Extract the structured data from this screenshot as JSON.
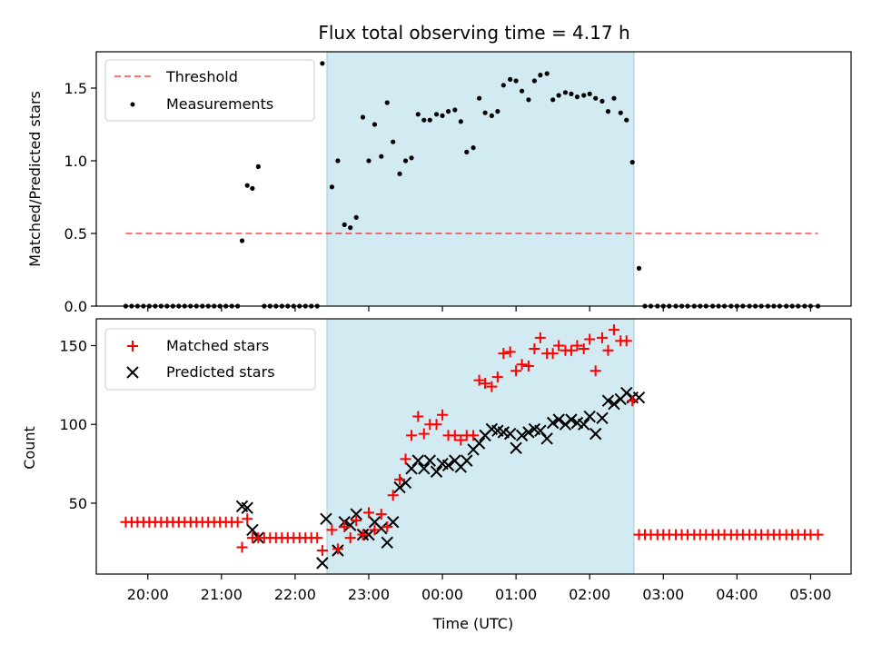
{
  "title": "Flux total observing time = 4.17 h",
  "colors": {
    "threshold": "#ff0000",
    "measurements": "#000000",
    "matched": "#ff0000",
    "predicted": "#000000",
    "highlight": "#add8e6"
  },
  "chart_data": [
    {
      "type": "scatter",
      "ylabel": "Matched/Predicted stars",
      "ylim": [
        0,
        1.75
      ],
      "yticks": [
        0.0,
        0.5,
        1.0,
        1.5
      ],
      "ytick_labels": [
        "0.0",
        "0.5",
        "1.0",
        "1.5"
      ],
      "legend_position": "top-left",
      "legend": [
        "Threshold",
        "Measurements"
      ],
      "threshold": {
        "value": 0.5,
        "x_start": 19.7,
        "x_end": 5.1
      },
      "highlight_span": [
        22.433,
        2.6
      ],
      "measurements": {
        "x": [
          19.7,
          19.78,
          19.86,
          19.94,
          20.02,
          20.1,
          20.18,
          20.26,
          20.34,
          20.42,
          20.5,
          20.58,
          20.66,
          20.74,
          20.82,
          20.9,
          20.98,
          21.06,
          21.14,
          21.22,
          21.28,
          21.35,
          21.42,
          21.5,
          21.58,
          21.66,
          21.74,
          21.82,
          21.9,
          21.98,
          22.06,
          22.14,
          22.22,
          22.3,
          22.37,
          22.5,
          22.58,
          22.67,
          22.75,
          22.83,
          22.92,
          23.0,
          23.08,
          23.17,
          23.25,
          23.33,
          23.42,
          23.5,
          23.58,
          23.67,
          23.75,
          23.83,
          23.92,
          24.0,
          24.08,
          24.17,
          24.25,
          24.33,
          24.42,
          24.5,
          24.58,
          24.67,
          24.75,
          24.83,
          24.92,
          25.0,
          25.08,
          25.17,
          25.25,
          25.33,
          25.42,
          25.5,
          25.58,
          25.67,
          25.75,
          25.83,
          25.92,
          26.0,
          26.08,
          26.17,
          26.25,
          26.33,
          26.42,
          26.5,
          26.58,
          26.67,
          26.75,
          26.83,
          26.92,
          27.0,
          27.08,
          27.17,
          27.25,
          27.33,
          27.42,
          27.5,
          27.58,
          27.67,
          27.75,
          27.83,
          27.92,
          28.0,
          28.08,
          28.17,
          28.25,
          28.33,
          28.42,
          28.5,
          28.58,
          28.67,
          28.75,
          28.83,
          28.92,
          29.0,
          29.1
        ],
        "y": [
          0,
          0,
          0,
          0,
          0,
          0,
          0,
          0,
          0,
          0,
          0,
          0,
          0,
          0,
          0,
          0,
          0,
          0,
          0,
          0,
          0.45,
          0.83,
          0.81,
          0.96,
          0,
          0,
          0,
          0,
          0,
          0,
          0,
          0,
          0,
          0,
          1.67,
          0.82,
          1.0,
          0.56,
          0.54,
          0.61,
          1.3,
          1.0,
          1.25,
          1.03,
          1.4,
          1.13,
          0.91,
          1.0,
          1.02,
          1.32,
          1.28,
          1.28,
          1.32,
          1.31,
          1.34,
          1.35,
          1.27,
          1.06,
          1.09,
          1.43,
          1.33,
          1.31,
          1.34,
          1.52,
          1.56,
          1.55,
          1.48,
          1.42,
          1.55,
          1.59,
          1.6,
          1.42,
          1.45,
          1.47,
          1.46,
          1.44,
          1.45,
          1.46,
          1.43,
          1.41,
          1.34,
          1.43,
          1.33,
          1.28,
          0.99,
          0.26,
          0,
          0,
          0,
          0,
          0,
          0,
          0,
          0,
          0,
          0,
          0,
          0,
          0,
          0,
          0,
          0,
          0,
          0,
          0,
          0,
          0,
          0,
          0,
          0,
          0,
          0,
          0,
          0,
          0
        ]
      }
    },
    {
      "type": "scatter",
      "xlabel": "Time (UTC)",
      "ylabel": "Count",
      "ylim": [
        5,
        167
      ],
      "yticks": [
        50,
        100,
        150
      ],
      "ytick_labels": [
        "50",
        "100",
        "150"
      ],
      "xtick_positions": [
        20,
        21,
        22,
        23,
        24,
        25,
        26,
        27,
        28,
        29
      ],
      "xtick_labels": [
        "20:00",
        "21:00",
        "22:00",
        "23:00",
        "00:00",
        "01:00",
        "02:00",
        "03:00",
        "04:00",
        "05:00"
      ],
      "legend_position": "top-left",
      "legend": [
        "Matched stars",
        "Predicted stars"
      ],
      "highlight_span": [
        22.433,
        2.6
      ],
      "matched": {
        "x": [
          19.7,
          19.78,
          19.86,
          19.94,
          20.02,
          20.1,
          20.18,
          20.26,
          20.34,
          20.42,
          20.5,
          20.58,
          20.66,
          20.74,
          20.82,
          20.9,
          20.98,
          21.06,
          21.14,
          21.22,
          21.28,
          21.35,
          21.42,
          21.5,
          21.58,
          21.66,
          21.74,
          21.82,
          21.9,
          21.98,
          22.06,
          22.14,
          22.22,
          22.3,
          22.37,
          22.5,
          22.58,
          22.67,
          22.75,
          22.83,
          22.92,
          23.0,
          23.08,
          23.17,
          23.25,
          23.33,
          23.42,
          23.5,
          23.58,
          23.67,
          23.75,
          23.83,
          23.92,
          24.0,
          24.08,
          24.17,
          24.25,
          24.33,
          24.42,
          24.5,
          24.58,
          24.67,
          24.75,
          24.83,
          24.92,
          25.0,
          25.08,
          25.17,
          25.25,
          25.33,
          25.42,
          25.5,
          25.58,
          25.67,
          25.75,
          25.83,
          25.92,
          26.0,
          26.08,
          26.17,
          26.25,
          26.33,
          26.42,
          26.5,
          26.58,
          26.67,
          26.75,
          26.83,
          26.92,
          27.0,
          27.08,
          27.17,
          27.25,
          27.33,
          27.42,
          27.5,
          27.58,
          27.67,
          27.75,
          27.83,
          27.92,
          28.0,
          28.08,
          28.17,
          28.25,
          28.33,
          28.42,
          28.5,
          28.58,
          28.67,
          28.75,
          28.83,
          28.92,
          29.0,
          29.1
        ],
        "y": [
          38,
          38,
          38,
          38,
          38,
          38,
          38,
          38,
          38,
          38,
          38,
          38,
          38,
          38,
          38,
          38,
          38,
          38,
          38,
          38,
          22,
          40,
          28,
          28,
          28,
          28,
          28,
          28,
          28,
          28,
          28,
          28,
          28,
          28,
          20,
          33,
          21,
          35,
          28,
          39,
          30,
          44,
          33,
          43,
          35,
          55,
          65,
          78,
          93,
          105,
          94,
          100,
          100,
          106,
          93,
          93,
          90,
          93,
          93,
          128,
          126,
          124,
          130,
          145,
          146,
          134,
          138,
          137,
          148,
          155,
          145,
          145,
          150,
          147,
          147,
          150,
          148,
          154,
          134,
          155,
          147,
          160,
          153,
          153,
          115,
          30,
          30,
          30,
          30,
          30,
          30,
          30,
          30,
          30,
          30,
          30,
          30,
          30,
          30,
          30,
          30,
          30,
          30,
          30,
          30,
          30,
          30,
          30,
          30,
          30,
          30,
          30,
          30,
          30,
          30
        ]
      },
      "predicted": {
        "x": [
          21.28,
          21.35,
          21.42,
          21.5,
          22.37,
          22.42,
          22.58,
          22.67,
          22.75,
          22.83,
          22.92,
          23.0,
          23.08,
          23.17,
          23.25,
          23.33,
          23.42,
          23.5,
          23.58,
          23.67,
          23.75,
          23.83,
          23.92,
          24.0,
          24.08,
          24.17,
          24.25,
          24.33,
          24.42,
          24.5,
          24.58,
          24.67,
          24.75,
          24.83,
          24.92,
          25.0,
          25.08,
          25.17,
          25.25,
          25.33,
          25.42,
          25.5,
          25.58,
          25.67,
          25.75,
          25.83,
          25.92,
          26.0,
          26.08,
          26.17,
          26.25,
          26.33,
          26.42,
          26.5,
          26.58,
          26.67
        ],
        "y": [
          48,
          47,
          33,
          28,
          12,
          40,
          20,
          38,
          36,
          43,
          30,
          30,
          38,
          34,
          25,
          38,
          60,
          63,
          72,
          77,
          72,
          77,
          70,
          75,
          74,
          77,
          73,
          77,
          84,
          88,
          93,
          97,
          96,
          95,
          94,
          85,
          93,
          95,
          97,
          96,
          91,
          101,
          103,
          100,
          103,
          101,
          100,
          105,
          94,
          104,
          115,
          113,
          116,
          120,
          117,
          117
        ]
      }
    }
  ]
}
